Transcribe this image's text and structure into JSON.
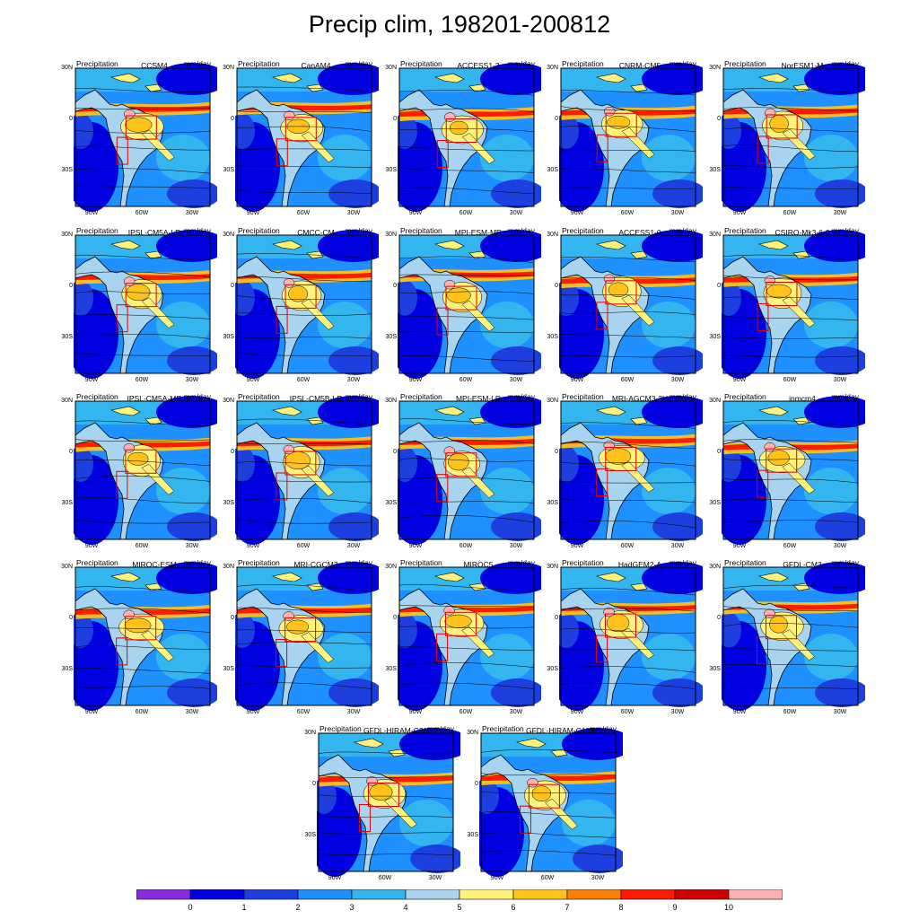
{
  "title": "Precip clim, 198201-200812",
  "panel_left_label": "Precipitation",
  "panel_right_label": "mm/day",
  "lat_ticks": [
    "30N",
    "0",
    "30S"
  ],
  "lon_ticks": [
    "90W",
    "60W",
    "30W"
  ],
  "models": [
    "CCSM4",
    "CanAM4",
    "ACCESS1-3",
    "CNRM-CM5",
    "NorESM1-M",
    "IPSL-CM5A-LR",
    "CMCC-CM",
    "MPI-ESM-MR",
    "ACCESS1-0",
    "CSIRO-Mk3-6-0",
    "IPSL-CM5A-MR",
    "IPSL-CM5B-LR",
    "MPI-ESM-LR",
    "MRI-AGCM3-2H",
    "inmcm4",
    "MIROC-ESM",
    "MRI-CGCM3",
    "MIROC5",
    "HadGEM2-A",
    "GFDL-CM3",
    "GFDL-HIRAM-C360",
    "GFDL-HIRAM-C180"
  ],
  "colorbar": {
    "labels": [
      "0",
      "1",
      "2",
      "3",
      "4",
      "5",
      "6",
      "7",
      "8",
      "9",
      "10"
    ],
    "colors": [
      "#8a2be2",
      "#0000e0",
      "#1e3fe0",
      "#1e90ff",
      "#33b5f0",
      "#a8d4f0",
      "#fff27a",
      "#ffc21a",
      "#ff8000",
      "#ff1a00",
      "#d00000",
      "#ffb0b0"
    ]
  }
}
